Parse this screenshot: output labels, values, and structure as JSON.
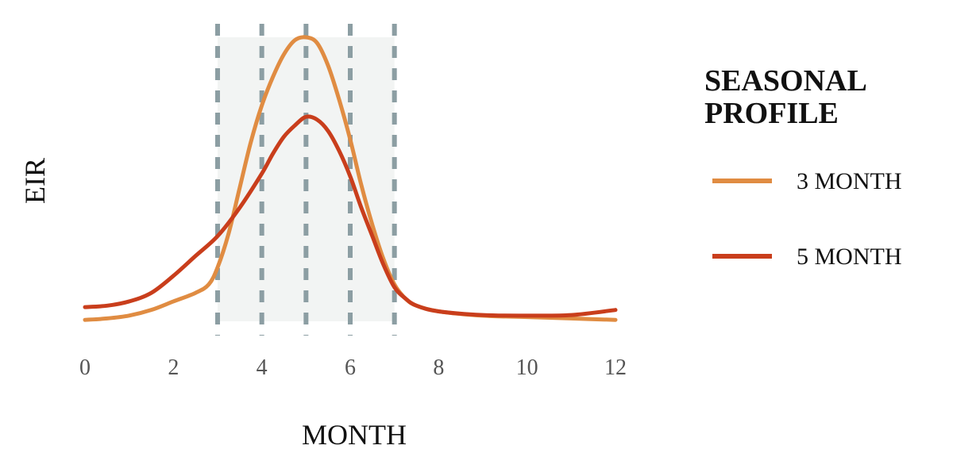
{
  "chart_data": {
    "type": "line",
    "xlabel": "MONTH",
    "ylabel": "EIR",
    "xlim": [
      0,
      12
    ],
    "ylim": [
      0,
      1
    ],
    "xticks": [
      0,
      2,
      4,
      6,
      8,
      10,
      12
    ],
    "grid": false,
    "shaded_region": {
      "x": [
        3,
        7
      ],
      "color": "#f2f4f3"
    },
    "vlines": {
      "x": [
        3,
        4,
        5,
        6,
        7
      ],
      "color": "#8c9ea3",
      "style": "dashed"
    },
    "legend": {
      "title_lines": [
        "SEASONAL",
        "PROFILE"
      ],
      "position": "right"
    },
    "series": [
      {
        "name": "3 MONTH",
        "color": "#e08c42",
        "x": [
          0,
          0.5,
          1,
          1.5,
          2,
          2.5,
          2.8,
          3,
          3.25,
          3.5,
          3.75,
          4,
          4.25,
          4.5,
          4.75,
          5,
          5.25,
          5.5,
          5.75,
          6,
          6.25,
          6.5,
          6.75,
          7,
          7.25,
          7.5,
          8,
          9,
          10,
          11,
          12
        ],
        "y": [
          0.005,
          0.01,
          0.02,
          0.04,
          0.07,
          0.1,
          0.13,
          0.19,
          0.31,
          0.47,
          0.63,
          0.76,
          0.86,
          0.94,
          0.99,
          1.0,
          0.98,
          0.9,
          0.78,
          0.64,
          0.48,
          0.34,
          0.22,
          0.13,
          0.08,
          0.055,
          0.035,
          0.02,
          0.015,
          0.01,
          0.005
        ]
      },
      {
        "name": "5 MONTH",
        "color": "#c93e1c",
        "x": [
          0,
          0.5,
          1,
          1.5,
          2,
          2.5,
          3,
          3.5,
          4,
          4.25,
          4.5,
          4.75,
          5,
          5.25,
          5.5,
          5.75,
          6,
          6.25,
          6.5,
          6.75,
          7,
          7.25,
          7.5,
          8,
          9,
          10,
          11,
          12
        ],
        "y": [
          0.05,
          0.055,
          0.07,
          0.1,
          0.16,
          0.23,
          0.3,
          0.4,
          0.52,
          0.59,
          0.65,
          0.69,
          0.72,
          0.71,
          0.67,
          0.6,
          0.51,
          0.4,
          0.3,
          0.2,
          0.12,
          0.08,
          0.055,
          0.035,
          0.022,
          0.02,
          0.022,
          0.04
        ]
      }
    ]
  }
}
